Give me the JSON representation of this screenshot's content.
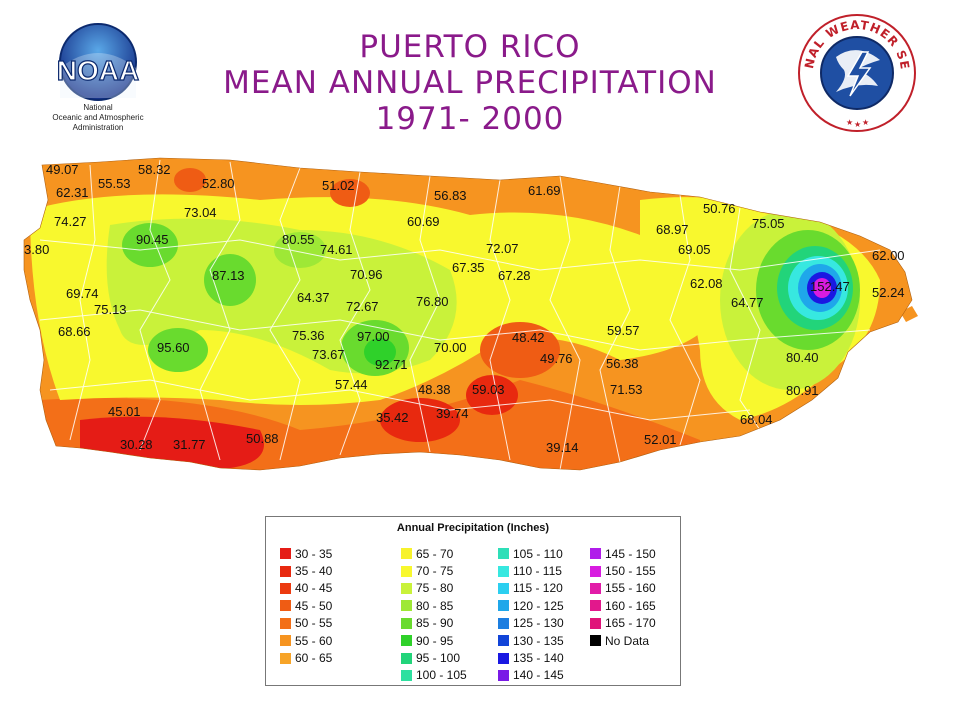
{
  "title": {
    "line1": "PUERTO RICO",
    "line2": "MEAN ANNUAL PRECIPITATION",
    "line3": "1971- 2000"
  },
  "logos": {
    "noaa": {
      "text": "NOAA",
      "subtitle_lines": [
        "National",
        "Oceanic and Atmospheric",
        "Administration"
      ]
    },
    "nws": {
      "text": "NATIONAL WEATHER SERVICE"
    }
  },
  "map": {
    "icon": "precipitation-contour-map",
    "station_values": [
      "49.07",
      "58.32",
      "55.53",
      "52.80",
      "62.31",
      "51.02",
      "56.83",
      "61.69",
      "74.27",
      "73.04",
      "60.69",
      "50.76",
      "3.80",
      "90.45",
      "80.55",
      "74.61",
      "72.07",
      "68.97",
      "75.05",
      "69.05",
      "62.00",
      "67.35",
      "67.28",
      "87.13",
      "70.96",
      "69.74",
      "64.37",
      "72.67",
      "62.08",
      "64.77",
      "52.24",
      "75.13",
      "76.80",
      "68.66",
      "75.36",
      "97.00",
      "59.57",
      "48.42",
      "95.60",
      "73.67",
      "70.00",
      "49.76",
      "56.38",
      "80.40",
      "92.71",
      "57.44",
      "48.38",
      "59.03",
      "71.53",
      "80.91",
      "45.01",
      "35.42",
      "39.74",
      "68.04",
      "30.28",
      "31.77",
      "50.88",
      "39.14",
      "52.01",
      "152.47"
    ]
  },
  "legend": {
    "title": "Annual Precipitation (Inches)",
    "columns": [
      [
        {
          "label": "30 - 35",
          "color": "#e51c16"
        },
        {
          "label": "35 - 40",
          "color": "#e8290f"
        },
        {
          "label": "40 - 45",
          "color": "#ec3a10"
        },
        {
          "label": "45 - 50",
          "color": "#ef5c14"
        },
        {
          "label": "50 - 55",
          "color": "#f36f18"
        },
        {
          "label": "55 - 60",
          "color": "#f69420"
        },
        {
          "label": "60 - 65",
          "color": "#f7a428"
        }
      ],
      [
        {
          "label": "65 - 70",
          "color": "#f7f22c"
        },
        {
          "label": "70 - 75",
          "color": "#f8f82e"
        },
        {
          "label": "75 - 80",
          "color": "#c9f23a"
        },
        {
          "label": "80 - 85",
          "color": "#9ee836"
        },
        {
          "label": "85 - 90",
          "color": "#69db2e"
        },
        {
          "label": "90 - 95",
          "color": "#2fd12a"
        },
        {
          "label": "95 - 100",
          "color": "#22d47a"
        },
        {
          "label": "100 - 105",
          "color": "#2ee0a0"
        }
      ],
      [
        {
          "label": "105 - 110",
          "color": "#2edfb8"
        },
        {
          "label": "110 - 115",
          "color": "#37e8e0"
        },
        {
          "label": "115 - 120",
          "color": "#2ccff0"
        },
        {
          "label": "120 - 125",
          "color": "#1fa7ea"
        },
        {
          "label": "125 - 130",
          "color": "#1c7ee0"
        },
        {
          "label": "130 - 135",
          "color": "#1144d8"
        },
        {
          "label": "135 - 140",
          "color": "#1a18e2"
        },
        {
          "label": "140 - 145",
          "color": "#7a1ae6"
        }
      ],
      [
        {
          "label": "145 - 150",
          "color": "#b01cea"
        },
        {
          "label": "150 - 155",
          "color": "#d81ce0"
        },
        {
          "label": "155 - 160",
          "color": "#e21ca8"
        },
        {
          "label": "160 - 165",
          "color": "#e2188c"
        },
        {
          "label": "165 - 170",
          "color": "#e0147a"
        },
        {
          "label": "No Data",
          "color": "#000000"
        }
      ]
    ]
  }
}
